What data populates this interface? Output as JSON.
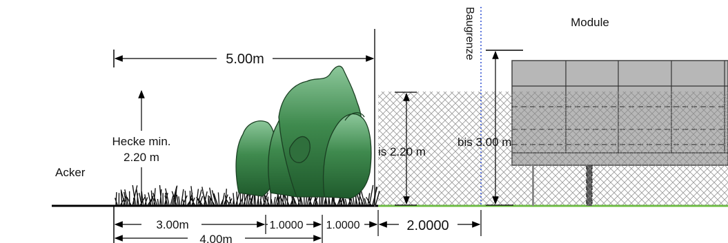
{
  "labels": {
    "module": "Module",
    "baugrenze": "Baugrenze",
    "acker": "Acker",
    "hecke_line1": "Hecke min.",
    "hecke_line2": "2.20 m",
    "fence_height": "is 2.20 m",
    "module_height": "bis 3.00 m"
  },
  "dimensions": {
    "total_width": "5.00m",
    "hedge_strip": "3.00m",
    "strip_a": "1.0000",
    "strip_b": "1.0000",
    "gap_to_boundary": "2.0000",
    "lower_total": "4.00m"
  },
  "colors": {
    "hedge_fill": "#3f8a4e",
    "hedge_dark": "#1f5a2c",
    "grass_line": "#6abf3c",
    "module_fill": "#b7b7b7",
    "boundary_dots": "#2a4bd1",
    "fence_mesh": "#888888"
  }
}
